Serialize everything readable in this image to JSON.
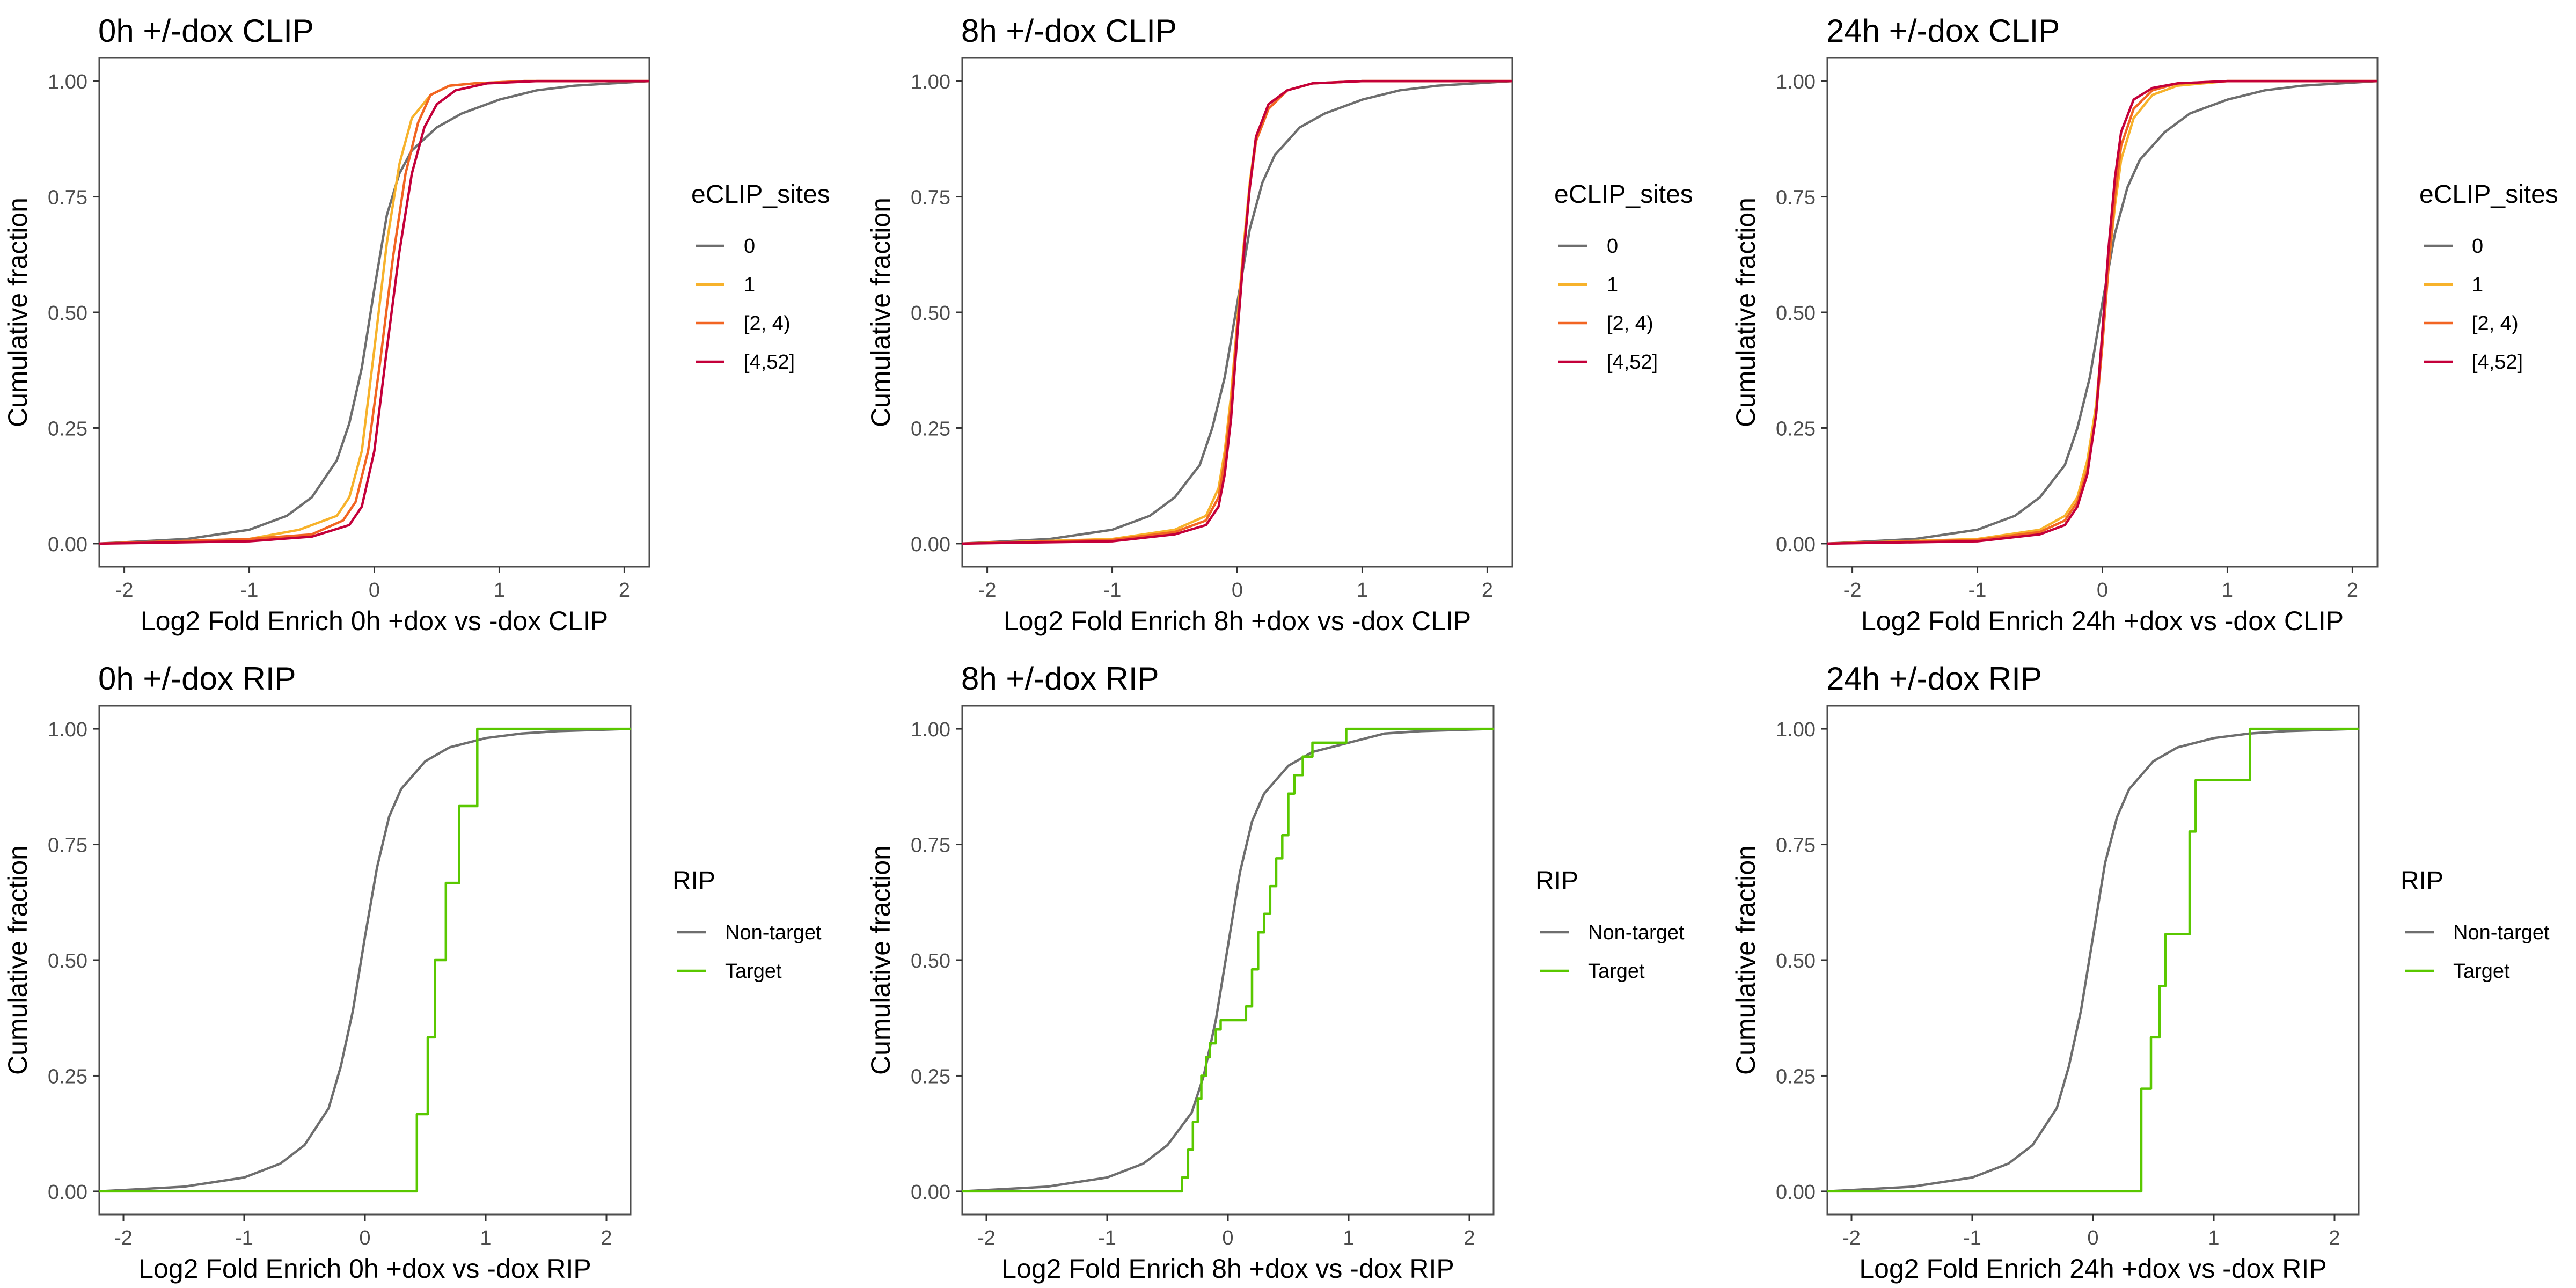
{
  "chart_data": [
    {
      "type": "line",
      "title": "0h +/-dox CLIP",
      "xlabel": "Log2 Fold Enrich 0h +dox vs -dox CLIP",
      "ylabel": "Cumulative fraction",
      "xlim": [
        -2.2,
        2.2
      ],
      "ylim": [
        -0.05,
        1.05
      ],
      "x_ticks": [
        -2,
        -1,
        0,
        1,
        2
      ],
      "y_ticks": [
        0,
        0.25,
        0.5,
        0.75,
        1
      ],
      "x_tick_labels": [
        "-2",
        "-1",
        "0",
        "1",
        "2"
      ],
      "y_tick_labels": [
        "0.00",
        "0.25",
        "0.50",
        "0.75",
        "1.00"
      ],
      "legend": {
        "title": "eCLIP_sites",
        "position": "right"
      },
      "grid": false,
      "series": [
        {
          "name": "0",
          "color": "#6e6e6e",
          "x": [
            -2.2,
            -1.5,
            -1,
            -0.7,
            -0.5,
            -0.3,
            -0.2,
            -0.1,
            0,
            0.1,
            0.2,
            0.3,
            0.5,
            0.7,
            1,
            1.3,
            1.6,
            2.2
          ],
          "y": [
            0,
            0.01,
            0.03,
            0.06,
            0.1,
            0.18,
            0.26,
            0.38,
            0.55,
            0.71,
            0.8,
            0.85,
            0.9,
            0.93,
            0.96,
            0.98,
            0.99,
            1
          ]
        },
        {
          "name": "1",
          "color": "#f7b22b",
          "x": [
            -2.2,
            -1,
            -0.6,
            -0.3,
            -0.2,
            -0.1,
            0,
            0.1,
            0.2,
            0.3,
            0.45,
            0.6,
            0.8,
            1.2,
            2.2
          ],
          "y": [
            0,
            0.01,
            0.03,
            0.06,
            0.1,
            0.2,
            0.42,
            0.65,
            0.82,
            0.92,
            0.97,
            0.99,
            0.995,
            1,
            1
          ]
        },
        {
          "name": "[2, 4)",
          "color": "#f26522",
          "x": [
            -2.2,
            -1,
            -0.5,
            -0.25,
            -0.15,
            -0.05,
            0.05,
            0.15,
            0.25,
            0.35,
            0.45,
            0.6,
            0.8,
            1.2,
            2.2
          ],
          "y": [
            0,
            0.01,
            0.02,
            0.05,
            0.09,
            0.2,
            0.4,
            0.62,
            0.8,
            0.91,
            0.97,
            0.99,
            0.995,
            1,
            1
          ]
        },
        {
          "name": "[4,52]",
          "color": "#c4003a",
          "x": [
            -2.2,
            -1,
            -0.5,
            -0.2,
            -0.1,
            0,
            0.1,
            0.2,
            0.3,
            0.4,
            0.5,
            0.65,
            0.9,
            1.3,
            2.2
          ],
          "y": [
            0,
            0.005,
            0.015,
            0.04,
            0.08,
            0.2,
            0.42,
            0.63,
            0.8,
            0.9,
            0.95,
            0.98,
            0.995,
            1,
            1
          ]
        }
      ]
    },
    {
      "type": "line",
      "title": "8h +/-dox CLIP",
      "xlabel": "Log2 Fold Enrich 8h +dox vs -dox CLIP",
      "ylabel": "Cumulative fraction",
      "xlim": [
        -2.2,
        2.2
      ],
      "ylim": [
        -0.05,
        1.05
      ],
      "x_ticks": [
        -2,
        -1,
        0,
        1,
        2
      ],
      "y_ticks": [
        0,
        0.25,
        0.5,
        0.75,
        1
      ],
      "x_tick_labels": [
        "-2",
        "-1",
        "0",
        "1",
        "2"
      ],
      "y_tick_labels": [
        "0.00",
        "0.25",
        "0.50",
        "0.75",
        "1.00"
      ],
      "legend": {
        "title": "eCLIP_sites",
        "position": "right"
      },
      "grid": false,
      "series": [
        {
          "name": "0",
          "color": "#6e6e6e",
          "x": [
            -2.2,
            -1.5,
            -1,
            -0.7,
            -0.5,
            -0.3,
            -0.2,
            -0.1,
            0,
            0.1,
            0.2,
            0.3,
            0.5,
            0.7,
            1,
            1.3,
            1.6,
            2.2
          ],
          "y": [
            0,
            0.01,
            0.03,
            0.06,
            0.1,
            0.17,
            0.25,
            0.36,
            0.52,
            0.68,
            0.78,
            0.84,
            0.9,
            0.93,
            0.96,
            0.98,
            0.99,
            1
          ]
        },
        {
          "name": "1",
          "color": "#f7b22b",
          "x": [
            -2.2,
            -1,
            -0.5,
            -0.25,
            -0.15,
            -0.1,
            -0.05,
            0,
            0.05,
            0.1,
            0.15,
            0.25,
            0.4,
            0.6,
            1,
            2.2
          ],
          "y": [
            0,
            0.01,
            0.03,
            0.06,
            0.12,
            0.2,
            0.32,
            0.48,
            0.64,
            0.78,
            0.88,
            0.95,
            0.98,
            0.995,
            1,
            1
          ]
        },
        {
          "name": "[2, 4)",
          "color": "#f26522",
          "x": [
            -2.2,
            -1,
            -0.5,
            -0.25,
            -0.15,
            -0.1,
            -0.05,
            0,
            0.05,
            0.1,
            0.15,
            0.25,
            0.4,
            0.6,
            1,
            2.2
          ],
          "y": [
            0,
            0.008,
            0.025,
            0.05,
            0.1,
            0.18,
            0.3,
            0.47,
            0.63,
            0.77,
            0.87,
            0.94,
            0.98,
            0.995,
            1,
            1
          ]
        },
        {
          "name": "[4,52]",
          "color": "#c4003a",
          "x": [
            -2.2,
            -1,
            -0.5,
            -0.25,
            -0.15,
            -0.1,
            -0.05,
            0,
            0.05,
            0.1,
            0.15,
            0.25,
            0.4,
            0.6,
            1,
            2.2
          ],
          "y": [
            0,
            0.005,
            0.02,
            0.04,
            0.08,
            0.15,
            0.27,
            0.45,
            0.62,
            0.77,
            0.88,
            0.95,
            0.98,
            0.995,
            1,
            1
          ]
        }
      ]
    },
    {
      "type": "line",
      "title": "24h +/-dox CLIP",
      "xlabel": "Log2 Fold Enrich 24h +dox vs -dox CLIP",
      "ylabel": "Cumulative fraction",
      "xlim": [
        -2.2,
        2.2
      ],
      "ylim": [
        -0.05,
        1.05
      ],
      "x_ticks": [
        -2,
        -1,
        0,
        1,
        2
      ],
      "y_ticks": [
        0,
        0.25,
        0.5,
        0.75,
        1
      ],
      "x_tick_labels": [
        "-2",
        "-1",
        "0",
        "1",
        "2"
      ],
      "y_tick_labels": [
        "0.00",
        "0.25",
        "0.50",
        "0.75",
        "1.00"
      ],
      "legend": {
        "title": "eCLIP_sites",
        "position": "right"
      },
      "grid": false,
      "series": [
        {
          "name": "0",
          "color": "#6e6e6e",
          "x": [
            -2.2,
            -1.5,
            -1,
            -0.7,
            -0.5,
            -0.3,
            -0.2,
            -0.1,
            0,
            0.1,
            0.2,
            0.3,
            0.5,
            0.7,
            1,
            1.3,
            1.6,
            2.2
          ],
          "y": [
            0,
            0.01,
            0.03,
            0.06,
            0.1,
            0.17,
            0.25,
            0.36,
            0.52,
            0.67,
            0.77,
            0.83,
            0.89,
            0.93,
            0.96,
            0.98,
            0.99,
            1
          ]
        },
        {
          "name": "1",
          "color": "#f7b22b",
          "x": [
            -2.2,
            -1,
            -0.5,
            -0.3,
            -0.2,
            -0.12,
            -0.05,
            0,
            0.05,
            0.1,
            0.15,
            0.25,
            0.4,
            0.6,
            1,
            2.2
          ],
          "y": [
            0,
            0.01,
            0.03,
            0.06,
            0.1,
            0.18,
            0.3,
            0.45,
            0.6,
            0.73,
            0.83,
            0.92,
            0.97,
            0.99,
            1,
            1
          ]
        },
        {
          "name": "[2, 4)",
          "color": "#f26522",
          "x": [
            -2.2,
            -1,
            -0.5,
            -0.3,
            -0.2,
            -0.12,
            -0.05,
            0,
            0.05,
            0.1,
            0.15,
            0.25,
            0.4,
            0.6,
            1,
            2.2
          ],
          "y": [
            0,
            0.008,
            0.025,
            0.05,
            0.09,
            0.16,
            0.28,
            0.43,
            0.6,
            0.75,
            0.86,
            0.94,
            0.98,
            0.995,
            1,
            1
          ]
        },
        {
          "name": "[4,52]",
          "color": "#c4003a",
          "x": [
            -2.2,
            -1,
            -0.5,
            -0.3,
            -0.2,
            -0.12,
            -0.05,
            0,
            0.05,
            0.1,
            0.15,
            0.25,
            0.4,
            0.6,
            1,
            2.2
          ],
          "y": [
            0,
            0.005,
            0.02,
            0.04,
            0.08,
            0.15,
            0.28,
            0.46,
            0.64,
            0.79,
            0.89,
            0.96,
            0.985,
            0.995,
            1,
            1
          ]
        }
      ]
    },
    {
      "type": "line",
      "title": "0h +/-dox RIP",
      "xlabel": "Log2 Fold Enrich 0h +dox vs -dox RIP",
      "ylabel": "Cumulative fraction",
      "xlim": [
        -2.2,
        2.2
      ],
      "ylim": [
        -0.05,
        1.05
      ],
      "x_ticks": [
        -2,
        -1,
        0,
        1,
        2
      ],
      "y_ticks": [
        0,
        0.25,
        0.5,
        0.75,
        1
      ],
      "x_tick_labels": [
        "-2",
        "-1",
        "0",
        "1",
        "2"
      ],
      "y_tick_labels": [
        "0.00",
        "0.25",
        "0.50",
        "0.75",
        "1.00"
      ],
      "legend": {
        "title": "RIP",
        "position": "right"
      },
      "grid": false,
      "series": [
        {
          "name": "Non-target",
          "color": "#6e6e6e",
          "x": [
            -2.2,
            -1.5,
            -1,
            -0.7,
            -0.5,
            -0.3,
            -0.2,
            -0.1,
            0,
            0.1,
            0.2,
            0.3,
            0.5,
            0.7,
            1,
            1.3,
            1.6,
            2.2
          ],
          "y": [
            0,
            0.01,
            0.03,
            0.06,
            0.1,
            0.18,
            0.27,
            0.39,
            0.55,
            0.7,
            0.81,
            0.87,
            0.93,
            0.96,
            0.98,
            0.99,
            0.995,
            1
          ]
        },
        {
          "name": "Target",
          "color": "#5ac800",
          "step": true,
          "x": [
            -2.2,
            0.43,
            0.52,
            0.58,
            0.67,
            0.78,
            0.93,
            2.2
          ],
          "y": [
            0,
            0.167,
            0.333,
            0.5,
            0.667,
            0.833,
            1,
            1
          ]
        }
      ]
    },
    {
      "type": "line",
      "title": "8h +/-dox RIP",
      "xlabel": "Log2 Fold Enrich 8h +dox vs -dox RIP",
      "ylabel": "Cumulative fraction",
      "xlim": [
        -2.2,
        2.2
      ],
      "ylim": [
        -0.05,
        1.05
      ],
      "x_ticks": [
        -2,
        -1,
        0,
        1,
        2
      ],
      "y_ticks": [
        0,
        0.25,
        0.5,
        0.75,
        1
      ],
      "x_tick_labels": [
        "-2",
        "-1",
        "0",
        "1",
        "2"
      ],
      "y_tick_labels": [
        "0.00",
        "0.25",
        "0.50",
        "0.75",
        "1.00"
      ],
      "legend": {
        "title": "RIP",
        "position": "right"
      },
      "grid": false,
      "series": [
        {
          "name": "Non-target",
          "color": "#6e6e6e",
          "x": [
            -2.2,
            -1.5,
            -1,
            -0.7,
            -0.5,
            -0.3,
            -0.2,
            -0.1,
            0,
            0.1,
            0.2,
            0.3,
            0.5,
            0.7,
            1,
            1.3,
            1.6,
            2.2
          ],
          "y": [
            0,
            0.01,
            0.03,
            0.06,
            0.1,
            0.17,
            0.25,
            0.37,
            0.53,
            0.69,
            0.8,
            0.86,
            0.92,
            0.95,
            0.97,
            0.99,
            0.995,
            1
          ]
        },
        {
          "name": "Target",
          "color": "#5ac800",
          "step": true,
          "x": [
            -2.2,
            -0.38,
            -0.33,
            -0.29,
            -0.25,
            -0.22,
            -0.18,
            -0.15,
            -0.1,
            -0.06,
            0.15,
            0.2,
            0.25,
            0.3,
            0.35,
            0.4,
            0.45,
            0.5,
            0.55,
            0.62,
            0.7,
            0.98,
            2.2
          ],
          "y": [
            0,
            0.03,
            0.09,
            0.15,
            0.2,
            0.25,
            0.29,
            0.32,
            0.35,
            0.37,
            0.4,
            0.48,
            0.56,
            0.6,
            0.66,
            0.72,
            0.77,
            0.86,
            0.9,
            0.94,
            0.97,
            1,
            1
          ]
        }
      ]
    },
    {
      "type": "line",
      "title": "24h +/-dox RIP",
      "xlabel": "Log2 Fold Enrich 24h +dox vs -dox RIP",
      "ylabel": "Cumulative fraction",
      "xlim": [
        -2.2,
        2.2
      ],
      "ylim": [
        -0.05,
        1.05
      ],
      "x_ticks": [
        -2,
        -1,
        0,
        1,
        2
      ],
      "y_ticks": [
        0,
        0.25,
        0.5,
        0.75,
        1
      ],
      "x_tick_labels": [
        "-2",
        "-1",
        "0",
        "1",
        "2"
      ],
      "y_tick_labels": [
        "0.00",
        "0.25",
        "0.50",
        "0.75",
        "1.00"
      ],
      "legend": {
        "title": "RIP",
        "position": "right"
      },
      "grid": false,
      "series": [
        {
          "name": "Non-target",
          "color": "#6e6e6e",
          "x": [
            -2.2,
            -1.5,
            -1,
            -0.7,
            -0.5,
            -0.3,
            -0.2,
            -0.1,
            0,
            0.1,
            0.2,
            0.3,
            0.5,
            0.7,
            1,
            1.3,
            1.6,
            2.2
          ],
          "y": [
            0,
            0.01,
            0.03,
            0.06,
            0.1,
            0.18,
            0.27,
            0.39,
            0.55,
            0.71,
            0.81,
            0.87,
            0.93,
            0.96,
            0.98,
            0.99,
            0.995,
            1
          ]
        },
        {
          "name": "Target",
          "color": "#5ac800",
          "step": true,
          "x": [
            -2.2,
            0.4,
            0.48,
            0.55,
            0.6,
            0.8,
            0.85,
            0.9,
            1.3,
            2.2
          ],
          "y": [
            0,
            0.222,
            0.333,
            0.444,
            0.556,
            0.778,
            0.889,
            0.889,
            1,
            1
          ]
        }
      ]
    }
  ]
}
